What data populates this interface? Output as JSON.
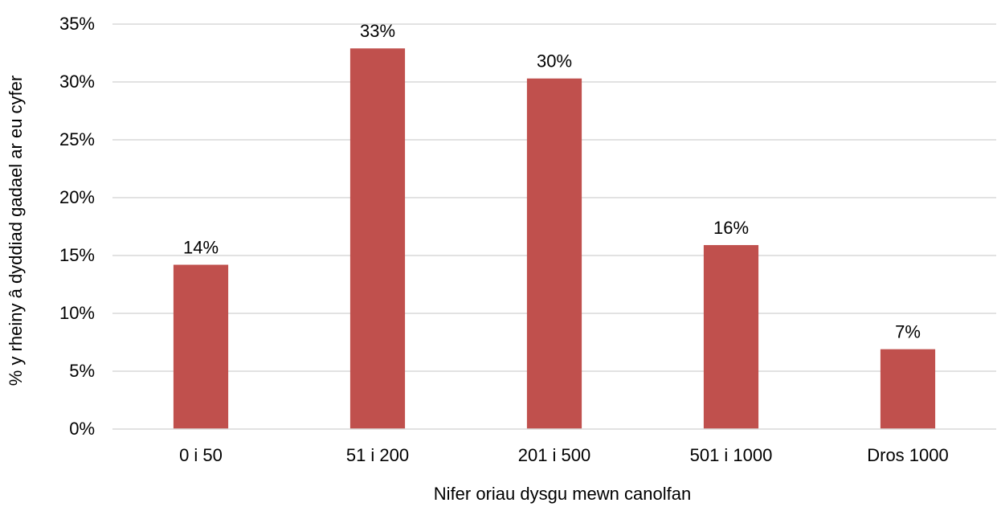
{
  "chart_data": {
    "type": "bar",
    "categories": [
      "0 i 50",
      "51 i 200",
      "201 i 500",
      "501 i 1000",
      "Dros 1000"
    ],
    "values": [
      14.2,
      32.9,
      30.3,
      15.9,
      6.9
    ],
    "data_labels": [
      "14%",
      "33%",
      "30%",
      "16%",
      "7%"
    ],
    "xlabel": "Nifer oriau dysgu mewn canolfan",
    "ylabel": "% y rheiny â dyddiad gadael ar eu cyfer",
    "ylim": [
      0,
      35
    ],
    "yticks": [
      0,
      5,
      10,
      15,
      20,
      25,
      30,
      35
    ],
    "ytick_labels": [
      "0%",
      "5%",
      "10%",
      "15%",
      "20%",
      "25%",
      "30%",
      "35%"
    ],
    "bar_color": "#c0504d",
    "grid_color": "#d9d9d9",
    "grid": true
  }
}
